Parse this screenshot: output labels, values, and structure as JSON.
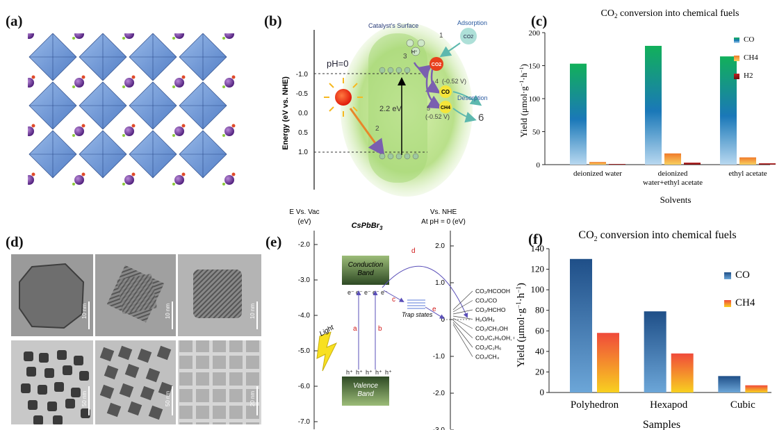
{
  "labels": {
    "a": "(a)",
    "b": "(b)",
    "c": "(c)",
    "d": "(d)",
    "e": "(e)",
    "f": "(f)"
  },
  "panel_b": {
    "yaxis": "Energy (eV vs. NHE)",
    "ph": "pH=0",
    "ticks": [
      "-1.0",
      "-0.5",
      "0.0",
      "0.5",
      "1.0"
    ],
    "surface": "Catalyst's Surface",
    "adsorption": "Adsorption",
    "desorption": "Desorption",
    "gap": "2.2 eV",
    "co2": "CO2",
    "co": "CO",
    "ch4": "CH4",
    "pot1": "(-0.52 V)",
    "pot2": "(-0.52 V)",
    "steps": [
      "1",
      "2",
      "3",
      "4",
      "5",
      "6"
    ],
    "h": "H⁺",
    "colors": {
      "glow": "#b9e08a",
      "sun": "#f23a1c",
      "co2mol": "#e8401c",
      "product": "#f5e53a",
      "arrow": "#5db8ae"
    }
  },
  "panel_e": {
    "left_axis_title": "E Vs. Vac",
    "left_axis_unit": "(eV)",
    "right_axis_title": "Vs. NHE",
    "right_axis_unit": "At pH = 0 (eV)",
    "material": "CsPbBr3",
    "left_ticks": [
      "-2.0",
      "-3.0",
      "-4.0",
      "-5.0",
      "-6.0",
      "-7.0"
    ],
    "right_ticks": [
      "2.0",
      "1.0",
      "0",
      "-1.0",
      "-2.0",
      "-3.0"
    ],
    "cb": "Conduction Band",
    "vb": "Valence Band",
    "trap": "Trap states",
    "light": "Light",
    "letters": [
      "a",
      "b",
      "c",
      "d",
      "e"
    ],
    "electron": "e⁻",
    "hole": "h⁺",
    "reactions": [
      "CO2/HCOOH",
      "CO2/CO",
      "CO2/HCHO",
      "H2O/H2",
      "CO2/CH3OH",
      "CO2/C2H5OH, C2H4",
      "CO2/C2H6",
      "CO2/CH4"
    ]
  },
  "panel_d": {
    "scales": [
      "10 nm",
      "10 nm",
      "10 nm",
      "50 nm",
      "50 nm",
      "20 nm"
    ]
  },
  "chart_data": [
    {
      "type": "bar",
      "title": "CO2 conversion into chemical fuels",
      "xlabel": "Solvents",
      "ylabel": "Yield (μmol·g⁻¹·h⁻¹)",
      "categories": [
        "deionized water",
        "deionized water+ethyl acetate",
        "ethyl acetate"
      ],
      "category_lines": [
        [
          "deionized water"
        ],
        [
          "deionized",
          "water+ethyl acetate"
        ],
        [
          "ethyl acetate"
        ]
      ],
      "series": [
        {
          "name": "CO",
          "values": [
            153,
            180,
            164
          ],
          "color": "#1aa86a"
        },
        {
          "name": "CH4",
          "values": [
            4,
            17,
            11
          ],
          "color": "#f07a2a"
        },
        {
          "name": "H2",
          "values": [
            1,
            3,
            2
          ],
          "color": "#b02020"
        }
      ],
      "ylim": [
        0,
        200
      ],
      "yticks": [
        0,
        50,
        100,
        150,
        200
      ],
      "legend": "top-right"
    },
    {
      "type": "bar",
      "title": "CO2 conversion into chemical fuels",
      "xlabel": "Samples",
      "ylabel": "Yield (μmol·g⁻¹·h⁻¹)",
      "categories": [
        "Polyhedron",
        "Hexapod",
        "Cubic"
      ],
      "series": [
        {
          "name": "CO",
          "values": [
            130,
            79,
            16
          ],
          "color": "#2f6fa8"
        },
        {
          "name": "CH4",
          "values": [
            58,
            38,
            7
          ],
          "color": "#f5713a"
        }
      ],
      "ylim": [
        0,
        140
      ],
      "yticks": [
        0,
        20,
        40,
        60,
        80,
        100,
        120,
        140
      ],
      "legend": "top-right"
    }
  ]
}
